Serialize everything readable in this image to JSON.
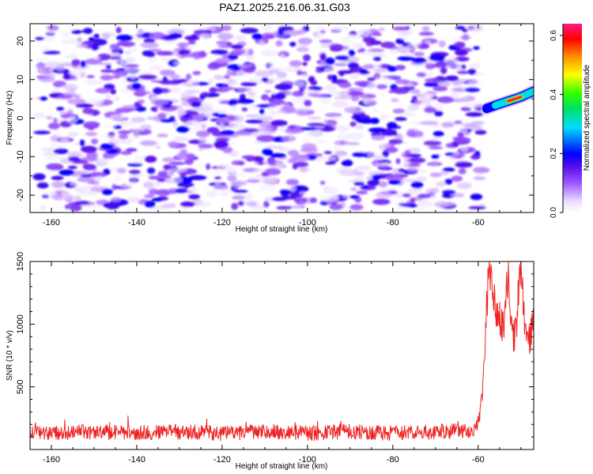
{
  "figure_title": "PAZ1.2025.216.06.31.G03",
  "colors": {
    "snr_line": "#ee2222",
    "spectrum_low": "#ffffff",
    "spectrum_purple": "#7a1ee0",
    "spectrum_blue": "#2040ff",
    "spectrum_green": "#20e020",
    "spectrum_red": "#ff1010"
  },
  "chart_data": [
    {
      "type": "heatmap",
      "title": "",
      "xlabel": "Height of straight line (km)",
      "ylabel": "Frequency (Hz)",
      "xlim": [
        -165,
        -47
      ],
      "ylim": [
        -24.5,
        24.5
      ],
      "x_ticks": [
        -160,
        -140,
        -120,
        -100,
        -80,
        -60
      ],
      "x_tick_labels": [
        "-160",
        "-140",
        "-120",
        "-100",
        "-80",
        "-60"
      ],
      "y_ticks": [
        20,
        10,
        0,
        -10,
        -20
      ],
      "y_tick_labels": [
        "20",
        "10",
        "0",
        "-10",
        "-20"
      ],
      "noise_x_range": [
        -163,
        -59
      ],
      "noise_max_amplitude": 0.2,
      "signal_ridge": {
        "points": [
          {
            "x": -58,
            "y": 2.5,
            "amplitude": 0.2
          },
          {
            "x": -56,
            "y": 3.3,
            "amplitude": 0.35
          },
          {
            "x": -53,
            "y": 4.4,
            "amplitude": 0.6
          },
          {
            "x": -50,
            "y": 5.5,
            "amplitude": 0.6
          },
          {
            "x": -47,
            "y": 7.0,
            "amplitude": 0.35
          }
        ]
      },
      "colorbar": {
        "label": "Normalized spectral amplitude",
        "range": [
          0.0,
          0.64
        ],
        "ticks": [
          0.0,
          0.2,
          0.4,
          0.6
        ],
        "tick_labels": [
          "0.0",
          "0.2",
          "0.4",
          "0.6"
        ]
      },
      "grid": false
    },
    {
      "type": "line",
      "title": "",
      "xlabel": "Height of straight line (km)",
      "ylabel": "SNR (10 * v/v)",
      "xlim": [
        -165,
        -47
      ],
      "ylim": [
        0,
        1500
      ],
      "x_ticks": [
        -160,
        -140,
        -120,
        -100,
        -80,
        -60
      ],
      "x_tick_labels": [
        "-160",
        "-140",
        "-120",
        "-100",
        "-80",
        "-60"
      ],
      "y_ticks": [
        500,
        1000,
        1500
      ],
      "y_tick_labels": [
        "500",
        "1000",
        "1500"
      ],
      "grid": false,
      "series": [
        {
          "x": [
            -165,
            -160,
            -150,
            -140,
            -130,
            -120,
            -110,
            -100,
            -90,
            -80,
            -70,
            -62,
            -60,
            -59,
            -58,
            -57.5,
            -57,
            -56,
            -55,
            -54,
            -53,
            -52,
            -51,
            -50,
            -49,
            -48,
            -47
          ],
          "y": [
            150,
            130,
            140,
            135,
            140,
            130,
            140,
            130,
            145,
            130,
            140,
            150,
            180,
            450,
            1050,
            1500,
            1350,
            1150,
            1050,
            950,
            1400,
            850,
            1000,
            1500,
            950,
            850,
            1000
          ],
          "noise_sd": [
            60,
            60,
            60,
            60,
            60,
            60,
            60,
            60,
            60,
            60,
            60,
            60,
            60,
            80,
            150,
            150,
            150,
            150,
            150,
            150,
            150,
            150,
            150,
            150,
            150,
            150,
            150
          ]
        }
      ]
    }
  ]
}
